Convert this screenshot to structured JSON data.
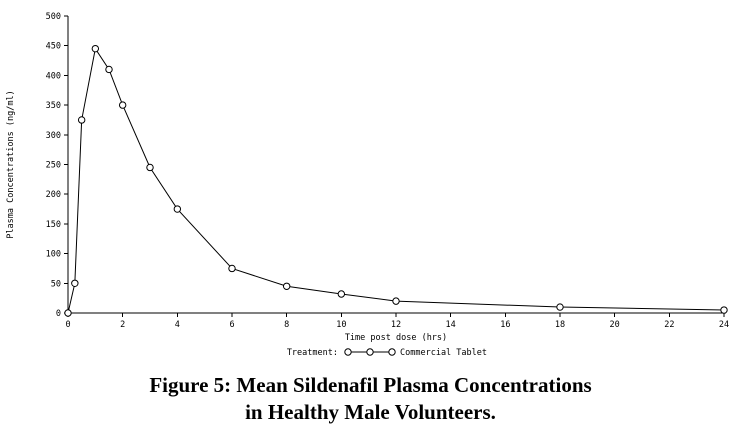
{
  "figure": {
    "caption_line1": "Figure 5: Mean Sildenafil Plasma Concentrations",
    "caption_line2": "in Healthy Male Volunteers."
  },
  "chart_data": {
    "type": "line",
    "title": "",
    "xlabel": "Time post dose (hrs)",
    "ylabel": "Plasma Concentrations (ng/ml)",
    "xlim": [
      0,
      24
    ],
    "ylim": [
      0,
      500
    ],
    "x_ticks": [
      0,
      2,
      4,
      6,
      8,
      10,
      12,
      14,
      16,
      18,
      20,
      22,
      24
    ],
    "y_ticks": [
      0,
      50,
      100,
      150,
      200,
      250,
      300,
      350,
      400,
      450,
      500
    ],
    "grid": false,
    "legend": {
      "label": "Treatment:",
      "series_label": "Commercial Tablet",
      "position": "bottom"
    },
    "colors": {
      "line": "#000000",
      "marker_fill": "#ffffff",
      "background": "#ffffff"
    },
    "series": [
      {
        "name": "Commercial Tablet",
        "marker": "open-circle",
        "x": [
          0,
          0.25,
          0.5,
          1,
          1.5,
          2,
          3,
          4,
          6,
          8,
          10,
          12,
          18,
          24
        ],
        "y": [
          0,
          50,
          325,
          445,
          410,
          350,
          245,
          175,
          75,
          45,
          32,
          20,
          10,
          5
        ]
      }
    ]
  }
}
